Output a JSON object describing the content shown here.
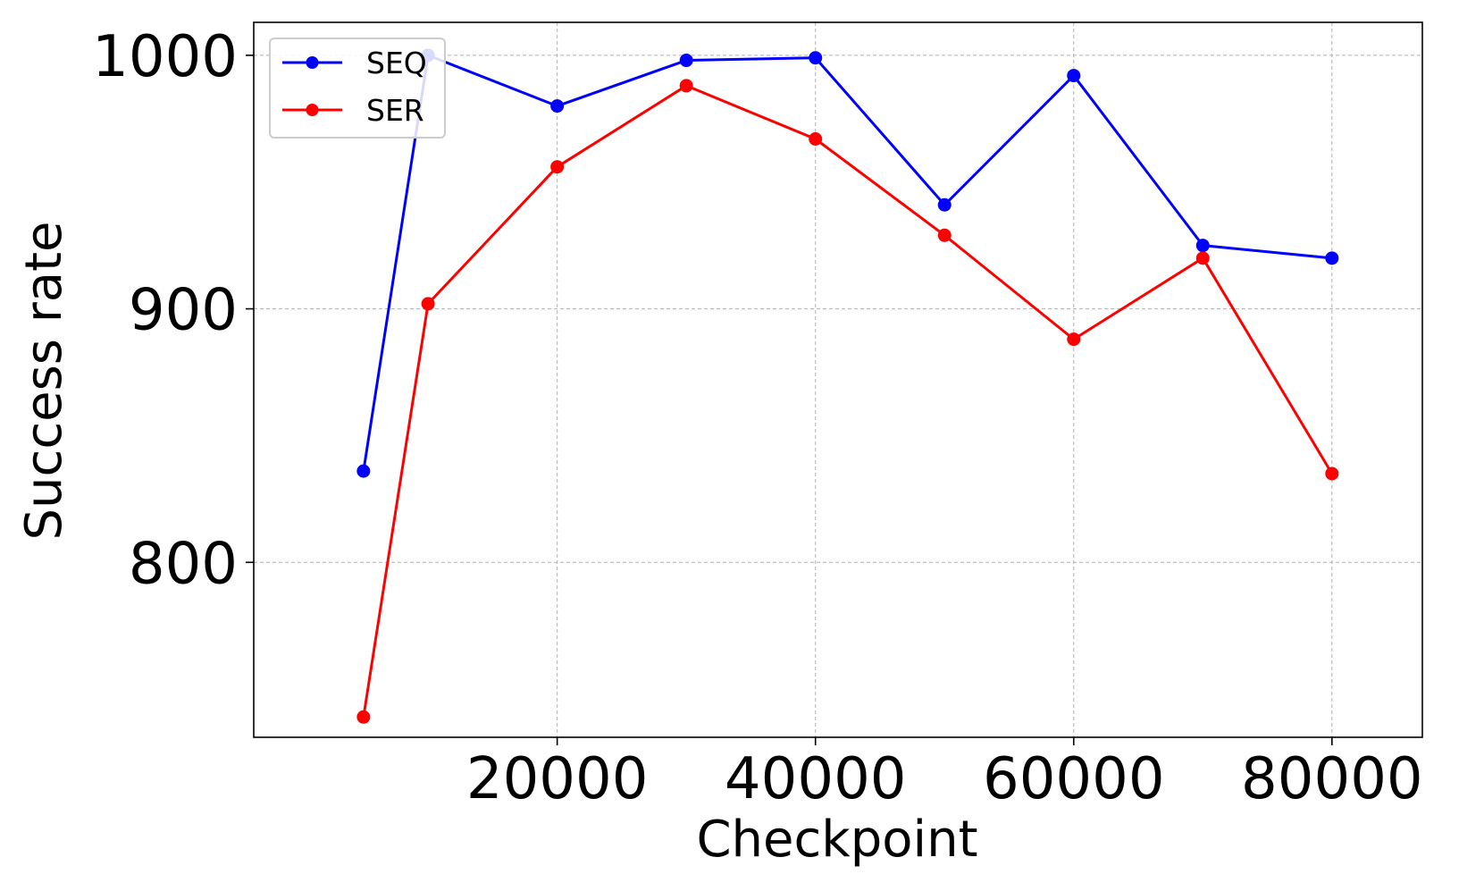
{
  "chart_data": {
    "type": "line",
    "title": "",
    "xlabel": "Checkpoint",
    "ylabel": "Success rate",
    "xlim": [
      -3500,
      87000
    ],
    "ylim": [
      731,
      1013
    ],
    "x_ticks": [
      20000,
      40000,
      60000,
      80000
    ],
    "x_tick_labels": [
      "20000",
      "40000",
      "60000",
      "80000"
    ],
    "y_ticks": [
      800,
      900,
      1000
    ],
    "y_tick_labels": [
      "800",
      "900",
      "1000"
    ],
    "grid": true,
    "legend_position": "top-left",
    "x": [
      5000,
      10000,
      20000,
      30000,
      40000,
      50000,
      60000,
      70000,
      80000
    ],
    "series": [
      {
        "name": "SEQ",
        "color": "#0000ff",
        "values": [
          836,
          1000,
          980,
          998,
          999,
          941,
          992,
          925,
          920
        ]
      },
      {
        "name": "SER",
        "color": "#ff0000",
        "values": [
          739,
          902,
          956,
          988,
          967,
          929,
          888,
          920,
          835
        ]
      }
    ]
  }
}
